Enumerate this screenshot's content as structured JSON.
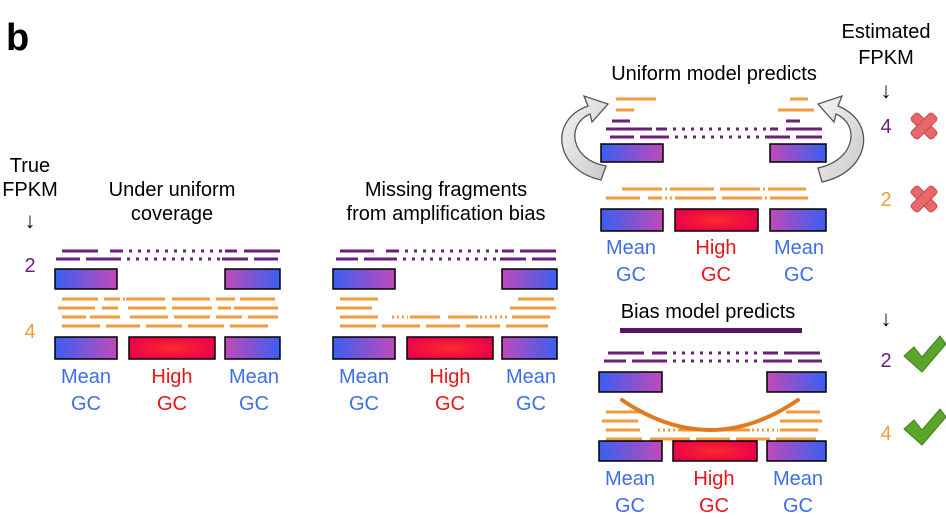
{
  "panel_label": "b",
  "colors": {
    "purple": "#6d1d7a",
    "orange": "#f39a3e",
    "blue_text": "#3f6fe8",
    "red_text": "#e8161c",
    "dark_purple_bar": "#5b1166",
    "bias_curve": "#e07a1f",
    "check_green": "#5aa62a",
    "cross_red": "#e8686a"
  },
  "left": {
    "true_label_1": "True",
    "true_label_2": "FPKM",
    "arrow": "↓",
    "val_purple": "2",
    "val_orange": "4"
  },
  "panel1": {
    "title_1": "Under uniform",
    "title_2": "coverage"
  },
  "panel2": {
    "title_1": "Missing fragments",
    "title_2": "from amplification bias"
  },
  "panel3": {
    "title": "Uniform model predicts"
  },
  "panel4": {
    "title": "Bias model predicts"
  },
  "gc": {
    "mean": "Mean",
    "high": "High",
    "gc": "GC"
  },
  "right": {
    "est_1": "Estimated",
    "est_2": "FPKM",
    "arrow": "↓",
    "u_val_purple": "4",
    "u_val_orange": "2",
    "b_val_purple": "2",
    "b_val_orange": "4"
  }
}
